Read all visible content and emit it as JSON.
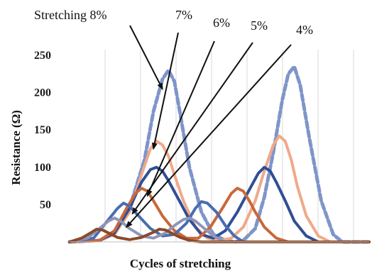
{
  "chart_data": {
    "type": "line",
    "title": "",
    "xlabel": "Cycles of stretching",
    "ylabel": "Resistance (Ω)",
    "ylim": [
      0,
      250
    ],
    "xlim": [
      0,
      100
    ],
    "yticks": [
      50,
      100,
      150,
      200,
      250
    ],
    "grid": "vertical",
    "legend": "none",
    "series": [
      {
        "color": "#7f95c9",
        "style": "dashed",
        "x": [
          0,
          10,
          15,
          20,
          25,
          28,
          31,
          33,
          35,
          37,
          40,
          44,
          48,
          52,
          55,
          58,
          62,
          65,
          68,
          71,
          73,
          75,
          77,
          80,
          84,
          88,
          91,
          100
        ],
        "values": [
          0,
          2,
          12,
          45,
          110,
          175,
          218,
          230,
          215,
          170,
          100,
          40,
          10,
          2,
          0,
          2,
          18,
          60,
          120,
          190,
          225,
          235,
          210,
          140,
          55,
          10,
          0,
          0
        ]
      },
      {
        "color": "#f0a98a",
        "style": "solid",
        "x": [
          0,
          10,
          15,
          20,
          24,
          27,
          29,
          31,
          33,
          35,
          38,
          42,
          46,
          50,
          54,
          58,
          62,
          65,
          68,
          70,
          72,
          74,
          76,
          79,
          83,
          87,
          100
        ],
        "values": [
          0,
          2,
          10,
          40,
          90,
          125,
          135,
          130,
          115,
          90,
          55,
          20,
          5,
          2,
          5,
          20,
          55,
          95,
          130,
          142,
          135,
          110,
          75,
          35,
          8,
          0,
          0
        ]
      },
      {
        "color": "#2f4f95",
        "style": "solid",
        "x": [
          0,
          10,
          15,
          20,
          24,
          27,
          29,
          31,
          33,
          36,
          40,
          44,
          48,
          52,
          56,
          60,
          63,
          65,
          67,
          69,
          72,
          75,
          79,
          83,
          100
        ],
        "values": [
          0,
          2,
          12,
          45,
          80,
          97,
          100,
          95,
          82,
          60,
          30,
          10,
          5,
          15,
          40,
          70,
          92,
          100,
          95,
          80,
          55,
          28,
          8,
          0,
          0
        ]
      },
      {
        "color": "#c9683a",
        "style": "solid",
        "x": [
          0,
          10,
          15,
          19,
          22,
          24,
          26,
          28,
          31,
          35,
          39,
          43,
          47,
          51,
          54,
          56,
          58,
          60,
          62,
          65,
          69,
          73,
          100
        ],
        "values": [
          0,
          2,
          15,
          45,
          65,
          72,
          68,
          55,
          35,
          15,
          5,
          5,
          20,
          45,
          65,
          72,
          68,
          55,
          40,
          20,
          5,
          0,
          0
        ]
      },
      {
        "color": "#4a6db0",
        "style": "solid",
        "x": [
          0,
          8,
          12,
          16,
          18,
          20,
          23,
          27,
          31,
          35,
          39,
          42,
          44,
          46,
          49,
          52,
          55,
          58,
          100
        ],
        "values": [
          0,
          5,
          25,
          45,
          52,
          48,
          35,
          18,
          8,
          10,
          25,
          45,
          54,
          52,
          40,
          22,
          8,
          0,
          0
        ]
      },
      {
        "color": "#8f95b8",
        "style": "solid",
        "x": [
          0,
          6,
          10,
          13,
          15,
          17,
          20,
          24,
          28,
          32,
          35,
          38,
          40,
          42,
          45,
          48,
          52,
          100
        ],
        "values": [
          0,
          5,
          18,
          28,
          32,
          28,
          18,
          8,
          5,
          12,
          22,
          30,
          32,
          28,
          18,
          8,
          0,
          0
        ]
      },
      {
        "color": "#8a4a2a",
        "style": "solid",
        "x": [
          0,
          4,
          7,
          9,
          11,
          13,
          16,
          20,
          24,
          28,
          30,
          32,
          34,
          37,
          40,
          44,
          100
        ],
        "values": [
          0,
          5,
          12,
          17,
          16,
          12,
          6,
          3,
          6,
          13,
          17,
          16,
          12,
          6,
          2,
          0,
          0
        ]
      }
    ],
    "annotations": [
      {
        "text": "Stretching 8%",
        "target_x": 31,
        "target_y": 205
      },
      {
        "text": "7%",
        "target_x": 28,
        "target_y": 125
      },
      {
        "text": "6%",
        "target_x": 26,
        "target_y": 62
      },
      {
        "text": "5%",
        "target_x": 21,
        "target_y": 38
      },
      {
        "text": "4%",
        "target_x": 19,
        "target_y": 20
      }
    ]
  }
}
